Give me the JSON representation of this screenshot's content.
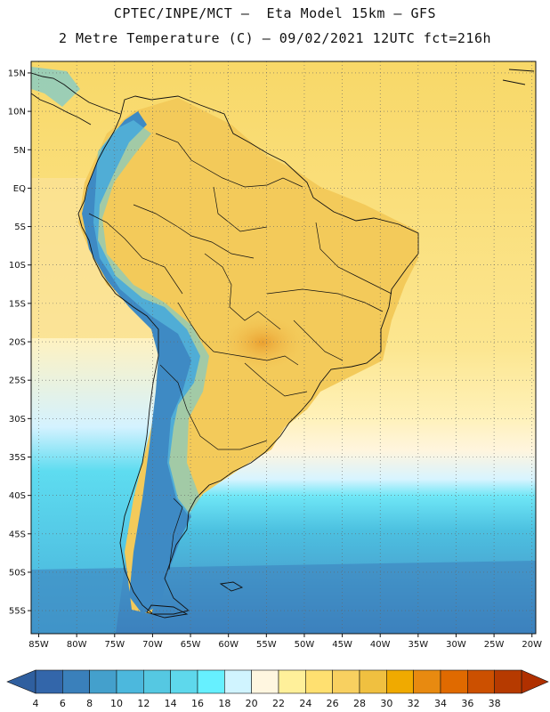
{
  "header": {
    "line1": "CPTEC/INPE/MCT –  Eta Model 15km – GFS",
    "line2": "2 Metre Temperature (C) – 09/02/2021 12UTC fct=216h"
  },
  "map": {
    "lat_labels": [
      "15N",
      "10N",
      "5N",
      "EQ",
      "5S",
      "10S",
      "15S",
      "20S",
      "25S",
      "30S",
      "35S",
      "40S",
      "45S",
      "50S",
      "55S"
    ],
    "lon_labels": [
      "85W",
      "80W",
      "75W",
      "70W",
      "65W",
      "60W",
      "55W",
      "50W",
      "45W",
      "40W",
      "35W",
      "30W",
      "25W",
      "20W"
    ],
    "lon_range": [
      -86,
      -19.5
    ],
    "lat_range": [
      -58,
      16.5
    ]
  },
  "colorbar": {
    "labels": [
      "4",
      "6",
      "8",
      "10",
      "12",
      "14",
      "16",
      "18",
      "20",
      "22",
      "24",
      "26",
      "28",
      "30",
      "32",
      "34",
      "36",
      "38"
    ],
    "colors": [
      "#3366aa",
      "#3a80bb",
      "#44a0cc",
      "#4cb8dd",
      "#55c8e2",
      "#5ed8ec",
      "#66f0ff",
      "#d0f4ff",
      "#fff6e0",
      "#fff09a",
      "#ffe070",
      "#f8d060",
      "#f0c040",
      "#f0aa00",
      "#e88a10",
      "#e06a00",
      "#cc5000",
      "#b63a00"
    ],
    "under_color": "#2f5f9f",
    "over_color": "#b03000"
  }
}
